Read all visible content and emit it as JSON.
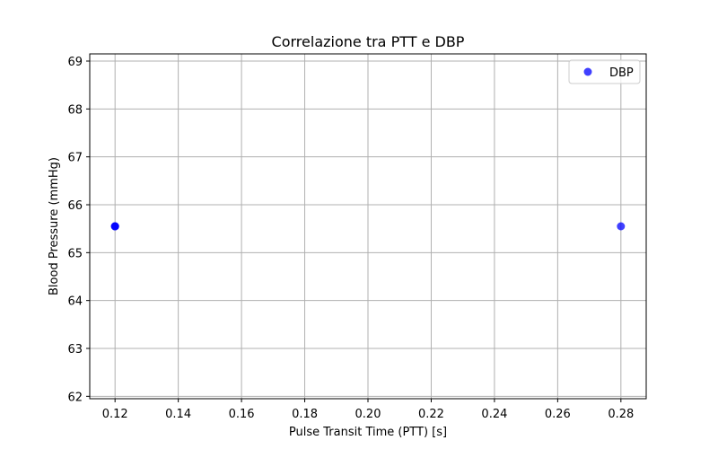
{
  "chart_data": {
    "type": "scatter",
    "title": "Correlazione tra PTT e DBP",
    "xlabel": "Pulse Transit Time (PTT) [s]",
    "ylabel": "Blood Pressure (mmHg)",
    "xlim": [
      0.112,
      0.288
    ],
    "ylim": [
      61.95,
      69.15
    ],
    "x_ticks": [
      0.12,
      0.14,
      0.16,
      0.18,
      0.2,
      0.22,
      0.24,
      0.26,
      0.28
    ],
    "y_ticks": [
      62,
      63,
      64,
      65,
      66,
      67,
      68,
      69
    ],
    "x_tick_labels": [
      "0.12",
      "0.14",
      "0.16",
      "0.18",
      "0.20",
      "0.22",
      "0.24",
      "0.26",
      "0.28"
    ],
    "y_tick_labels": [
      "62",
      "63",
      "64",
      "65",
      "66",
      "67",
      "68",
      "69"
    ],
    "grid": true,
    "legend_position": "top-right",
    "series": [
      {
        "name": "DBP",
        "color": "#0000ff",
        "points": [
          {
            "x": 0.12,
            "y": 65.55
          },
          {
            "x": 0.12,
            "y": 65.55
          },
          {
            "x": 0.12,
            "y": 65.55
          },
          {
            "x": 0.28,
            "y": 65.55
          }
        ]
      }
    ]
  }
}
